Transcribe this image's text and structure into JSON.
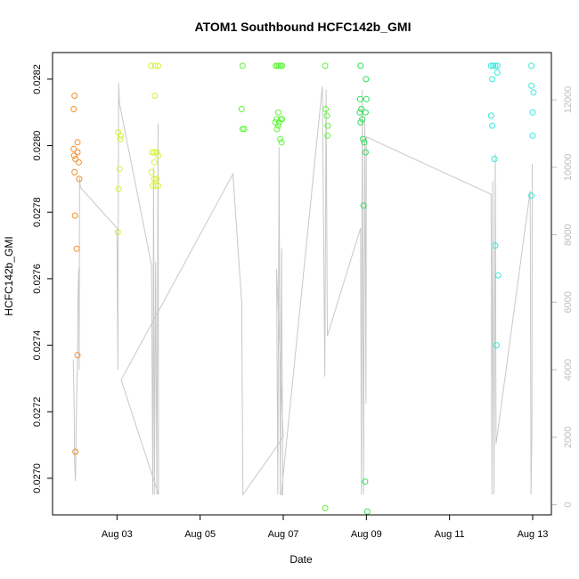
{
  "chart_data": {
    "type": "scatter",
    "title": "ATOM1 Southbound HCFC142b_GMI",
    "xlabel": "Date",
    "ylabel": "HCFC142b_GMI",
    "x_unit": "day of August 2016",
    "xlim": [
      1.45,
      13.45
    ],
    "ylim": [
      0.02689,
      0.02828
    ],
    "y2lim": [
      -300,
      13400
    ],
    "x_ticks": [
      {
        "value": 3,
        "label": "Aug 03"
      },
      {
        "value": 5,
        "label": "Aug 05"
      },
      {
        "value": 7,
        "label": "Aug 07"
      },
      {
        "value": 9,
        "label": "Aug 09"
      },
      {
        "value": 11,
        "label": "Aug 11"
      },
      {
        "value": 13,
        "label": "Aug 13"
      }
    ],
    "y_ticks": [
      {
        "value": 0.027,
        "label": "0.0270"
      },
      {
        "value": 0.0272,
        "label": "0.0272"
      },
      {
        "value": 0.0274,
        "label": "0.0274"
      },
      {
        "value": 0.0276,
        "label": "0.0276"
      },
      {
        "value": 0.0278,
        "label": "0.0278"
      },
      {
        "value": 0.028,
        "label": "0.0280"
      },
      {
        "value": 0.0282,
        "label": "0.0282"
      }
    ],
    "y2_ticks": [
      {
        "value": 0,
        "label": "0"
      },
      {
        "value": 2000,
        "label": "2000"
      },
      {
        "value": 4000,
        "label": "4000"
      },
      {
        "value": 6000,
        "label": "6000"
      },
      {
        "value": 8000,
        "label": "8000"
      },
      {
        "value": 10000,
        "label": "10000"
      },
      {
        "value": 12000,
        "label": "12000"
      }
    ],
    "grid": false,
    "legend": "none",
    "series": [
      {
        "color": "#f28e2b",
        "points": [
          [
            1.98,
            0.02815
          ],
          [
            1.96,
            0.02811
          ],
          [
            1.96,
            0.02799
          ],
          [
            1.97,
            0.02797
          ],
          [
            2.0,
            0.02796
          ],
          [
            2.05,
            0.02801
          ],
          [
            2.05,
            0.02798
          ],
          [
            2.08,
            0.02795
          ],
          [
            1.98,
            0.02792
          ],
          [
            2.09,
            0.0279
          ],
          [
            1.99,
            0.02779
          ],
          [
            2.03,
            0.02769
          ],
          [
            2.05,
            0.02737
          ],
          [
            2.0,
            0.02708
          ]
        ]
      },
      {
        "color": "#d8f03a",
        "points": [
          [
            3.03,
            0.02804
          ],
          [
            3.09,
            0.02803
          ],
          [
            3.08,
            0.02802
          ],
          [
            3.06,
            0.02793
          ],
          [
            3.04,
            0.02787
          ],
          [
            3.02,
            0.02774
          ],
          [
            3.82,
            0.02824
          ],
          [
            3.92,
            0.02824
          ],
          [
            3.99,
            0.02824
          ],
          [
            3.91,
            0.02815
          ],
          [
            3.85,
            0.02798
          ],
          [
            3.9,
            0.02798
          ],
          [
            3.96,
            0.02798
          ],
          [
            3.99,
            0.02797
          ],
          [
            3.9,
            0.02795
          ],
          [
            3.83,
            0.02792
          ],
          [
            3.89,
            0.0279
          ],
          [
            3.95,
            0.0279
          ],
          [
            3.86,
            0.02788
          ],
          [
            3.93,
            0.02788
          ],
          [
            3.99,
            0.02788
          ]
        ]
      },
      {
        "color": "#5ff53a",
        "points": [
          [
            6.02,
            0.02824
          ],
          [
            6.0,
            0.02811
          ],
          [
            6.02,
            0.02805
          ],
          [
            6.06,
            0.02805
          ],
          [
            6.82,
            0.02824
          ],
          [
            6.86,
            0.02824
          ],
          [
            6.9,
            0.02824
          ],
          [
            6.94,
            0.02824
          ],
          [
            6.97,
            0.02824
          ],
          [
            6.88,
            0.0281
          ],
          [
            6.84,
            0.02808
          ],
          [
            6.94,
            0.02808
          ],
          [
            6.97,
            0.02808
          ],
          [
            6.9,
            0.02807
          ],
          [
            6.81,
            0.02807
          ],
          [
            6.88,
            0.02806
          ],
          [
            6.85,
            0.02805
          ],
          [
            6.93,
            0.02802
          ],
          [
            6.96,
            0.02801
          ],
          [
            8.01,
            0.02824
          ],
          [
            8.02,
            0.02811
          ],
          [
            8.05,
            0.02809
          ],
          [
            8.07,
            0.02806
          ],
          [
            8.06,
            0.02803
          ],
          [
            8.01,
            0.02691
          ]
        ]
      },
      {
        "color": "#2ee05a",
        "points": [
          [
            8.86,
            0.02824
          ],
          [
            8.99,
            0.0282
          ],
          [
            8.85,
            0.02814
          ],
          [
            9.0,
            0.02814
          ],
          [
            8.88,
            0.02811
          ],
          [
            8.84,
            0.0281
          ],
          [
            8.98,
            0.0281
          ],
          [
            8.9,
            0.02808
          ],
          [
            8.86,
            0.02807
          ],
          [
            8.92,
            0.02802
          ],
          [
            8.95,
            0.02801
          ],
          [
            8.98,
            0.02798
          ],
          [
            8.93,
            0.02782
          ],
          [
            8.97,
            0.02699
          ],
          [
            9.02,
            0.0269
          ]
        ]
      },
      {
        "color": "#35e9d8",
        "points": [
          [
            12.0,
            0.02824
          ],
          [
            12.05,
            0.02824
          ],
          [
            12.1,
            0.02824
          ],
          [
            12.15,
            0.02824
          ],
          [
            12.15,
            0.02822
          ],
          [
            12.03,
            0.0282
          ],
          [
            12.0,
            0.02809
          ],
          [
            12.03,
            0.02806
          ],
          [
            12.08,
            0.02796
          ],
          [
            12.1,
            0.0277
          ],
          [
            12.17,
            0.02761
          ],
          [
            12.13,
            0.0274
          ],
          [
            12.97,
            0.02824
          ],
          [
            12.97,
            0.02818
          ],
          [
            13.02,
            0.02816
          ],
          [
            13.0,
            0.0281
          ],
          [
            13.0,
            0.02803
          ],
          [
            12.97,
            0.02785
          ]
        ]
      }
    ],
    "secondary_line": {
      "color": "#c8c8c8",
      "points": [
        [
          1.95,
          4300
        ],
        [
          1.97,
          2800
        ],
        [
          1.98,
          1300
        ],
        [
          2.0,
          700
        ],
        [
          2.02,
          2500
        ],
        [
          2.05,
          4500
        ],
        [
          2.06,
          6200
        ],
        [
          2.08,
          7000
        ],
        [
          2.09,
          4000
        ],
        [
          2.1,
          9700
        ],
        [
          2.12,
          9400
        ],
        [
          3.0,
          8200
        ],
        [
          3.02,
          4000
        ],
        [
          3.04,
          12500
        ],
        [
          3.06,
          11900
        ],
        [
          3.83,
          7100
        ],
        [
          3.86,
          300
        ],
        [
          3.88,
          10000
        ],
        [
          3.9,
          300
        ],
        [
          3.93,
          7200
        ],
        [
          3.96,
          300
        ],
        [
          3.99,
          11300
        ],
        [
          4.0,
          300
        ],
        [
          3.1,
          3700
        ],
        [
          5.79,
          9800
        ],
        [
          6.0,
          6000
        ],
        [
          6.03,
          300
        ],
        [
          7.0,
          2000
        ],
        [
          6.84,
          7000
        ],
        [
          6.87,
          300
        ],
        [
          6.9,
          10600
        ],
        [
          6.93,
          300
        ],
        [
          6.96,
          7600
        ],
        [
          6.99,
          300
        ],
        [
          6.95,
          300
        ],
        [
          7.94,
          12400
        ],
        [
          8.0,
          3800
        ],
        [
          8.03,
          12300
        ],
        [
          8.06,
          5000
        ],
        [
          8.86,
          8200
        ],
        [
          8.88,
          300
        ],
        [
          8.9,
          12300
        ],
        [
          8.93,
          300
        ],
        [
          8.96,
          11400
        ],
        [
          8.99,
          3000
        ],
        [
          9.0,
          10900
        ],
        [
          12.0,
          9200
        ],
        [
          12.02,
          300
        ],
        [
          12.04,
          9600
        ],
        [
          12.07,
          300
        ],
        [
          12.1,
          10400
        ],
        [
          12.12,
          1800
        ],
        [
          12.94,
          9300
        ],
        [
          12.96,
          300
        ],
        [
          12.98,
          2100
        ],
        [
          12.99,
          10100
        ]
      ]
    }
  }
}
